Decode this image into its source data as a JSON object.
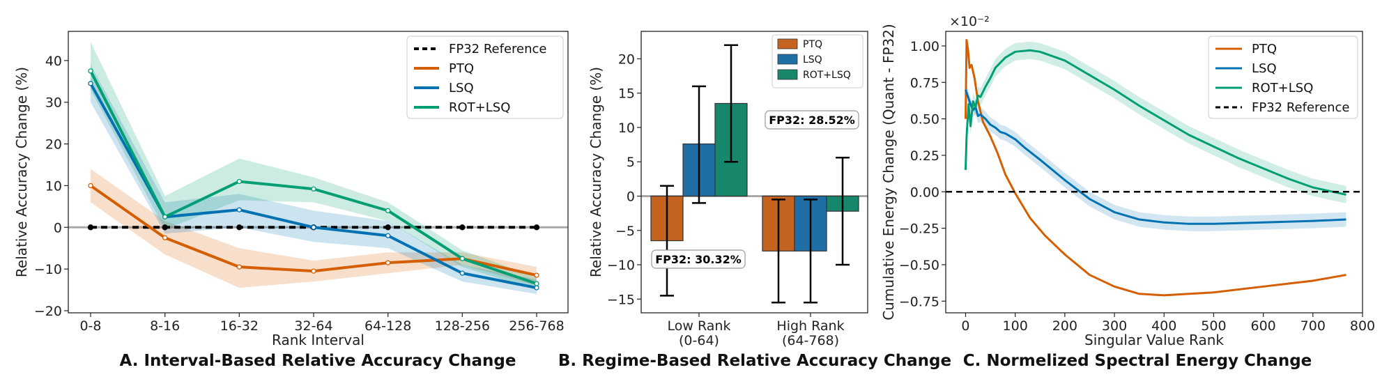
{
  "chart_data": [
    {
      "panel": "A",
      "type": "line",
      "title": "A. Interval-Based Relative Accuracy Change",
      "xlabel": "Rank Interval",
      "ylabel": "Relative Accuracy Change (%)",
      "categories": [
        "0-8",
        "8-16",
        "16-32",
        "32-64",
        "64-128",
        "128-256",
        "256-768"
      ],
      "ylim": [
        -20.5,
        47
      ],
      "yticks": [
        -20,
        -10,
        0,
        10,
        20,
        30,
        40
      ],
      "ytick_labels": [
        "−20",
        "−10",
        "0",
        "10",
        "20",
        "30",
        "40"
      ],
      "hline": 0,
      "legend_position": "top-right",
      "series": [
        {
          "name": "FP32 Reference",
          "color": "#000000",
          "style": "dashed-dots",
          "values": [
            0,
            0,
            0,
            0,
            0,
            0,
            0
          ]
        },
        {
          "name": "PTQ",
          "color": "#d55e00",
          "style": "solid",
          "values": [
            10,
            -2.5,
            -9.5,
            -10.5,
            -8.5,
            -7.5,
            -11.5
          ],
          "lower": [
            6,
            -6.5,
            -14.5,
            -13,
            -11,
            -9,
            -14
          ],
          "upper": [
            14,
            1.5,
            -5,
            -8,
            -6,
            -6,
            -9.5
          ]
        },
        {
          "name": "LSQ",
          "color": "#0072b2",
          "style": "solid",
          "values": [
            34.5,
            2.5,
            4.2,
            0,
            -2,
            -11,
            -14.5
          ],
          "lower": [
            30,
            -1.5,
            0,
            -3.5,
            -5,
            -13,
            -16
          ],
          "upper": [
            39,
            6,
            8,
            4,
            1.5,
            -9,
            -12.5
          ]
        },
        {
          "name": "ROT+LSQ",
          "color": "#009e73",
          "style": "solid",
          "values": [
            37.5,
            2.5,
            11,
            9.2,
            4,
            -7.5,
            -13.5
          ],
          "lower": [
            33,
            -0.5,
            6.5,
            6,
            1.5,
            -9.5,
            -15
          ],
          "upper": [
            44.5,
            7.5,
            16.5,
            12,
            6,
            -5.5,
            -12
          ]
        }
      ]
    },
    {
      "panel": "B",
      "type": "bar",
      "title": "B. Regime-Based Relative Accuracy Change",
      "xlabel": "",
      "ylabel": "Relative Accuracy Change (%)",
      "categories": [
        "Low Rank\n(0-64)",
        "High Rank\n(64-768)"
      ],
      "ylim": [
        -17,
        24
      ],
      "yticks": [
        -15,
        -10,
        -5,
        0,
        5,
        10,
        15,
        20
      ],
      "ytick_labels": [
        "−15",
        "−10",
        "−5",
        "0",
        "5",
        "10",
        "15",
        "20"
      ],
      "hline": 0,
      "legend_position": "top-right",
      "series": [
        {
          "name": "PTQ",
          "color": "#c46420",
          "values": [
            -6.5,
            -8
          ],
          "err_low": [
            -14.5,
            -15.5
          ],
          "err_high": [
            1.5,
            -0.5
          ]
        },
        {
          "name": "LSQ",
          "color": "#1f6fa6",
          "values": [
            7.6,
            -8
          ],
          "err_low": [
            -1,
            -15.5
          ],
          "err_high": [
            16,
            -0.5
          ]
        },
        {
          "name": "ROT+LSQ",
          "color": "#16876a",
          "values": [
            13.5,
            -2.2
          ],
          "err_low": [
            5,
            -10
          ],
          "err_high": [
            22,
            5.6
          ]
        }
      ],
      "annotations": [
        "FP32: 30.32%",
        "FP32: 28.52%"
      ]
    },
    {
      "panel": "C",
      "type": "line",
      "title": "C. Normelized Spectral Energy Change",
      "xlabel": "Singular Value Rank",
      "ylabel": "Cumulative Energy Change (Quant - FP32)",
      "scale_label": "×10⁻²",
      "xlim": [
        -40,
        800
      ],
      "ylim": [
        -0.83,
        1.1
      ],
      "xticks": [
        0,
        100,
        200,
        300,
        400,
        500,
        600,
        700,
        800
      ],
      "yticks": [
        -0.75,
        -0.5,
        -0.25,
        0.0,
        0.25,
        0.5,
        0.75,
        1.0
      ],
      "ytick_labels": [
        "−0.75",
        "−0.50",
        "−0.25",
        "0.00",
        "0.25",
        "0.50",
        "0.75",
        "1.00"
      ],
      "hline": 0,
      "legend_position": "top-right",
      "series": [
        {
          "name": "PTQ",
          "color": "#d55e00",
          "band": 0,
          "x": [
            0,
            2,
            5,
            8,
            12,
            18,
            25,
            35,
            50,
            65,
            80,
            100,
            130,
            160,
            200,
            250,
            300,
            350,
            400,
            450,
            500,
            550,
            600,
            650,
            700,
            767
          ],
          "y": [
            0.5,
            1.04,
            0.97,
            0.85,
            0.87,
            0.78,
            0.62,
            0.48,
            0.38,
            0.26,
            0.12,
            -0.01,
            -0.18,
            -0.3,
            -0.43,
            -0.57,
            -0.65,
            -0.7,
            -0.71,
            -0.7,
            -0.69,
            -0.67,
            -0.65,
            -0.63,
            -0.61,
            -0.57
          ]
        },
        {
          "name": "LSQ",
          "color": "#0072b2",
          "band": 0.05,
          "x": [
            0,
            5,
            10,
            15,
            20,
            25,
            30,
            40,
            50,
            60,
            70,
            80,
            90,
            100,
            120,
            150,
            200,
            250,
            300,
            350,
            400,
            450,
            500,
            600,
            700,
            767
          ],
          "y": [
            0.7,
            0.65,
            0.6,
            0.56,
            0.58,
            0.52,
            0.53,
            0.5,
            0.46,
            0.44,
            0.41,
            0.4,
            0.38,
            0.36,
            0.3,
            0.22,
            0.08,
            -0.05,
            -0.14,
            -0.19,
            -0.21,
            -0.22,
            -0.22,
            -0.21,
            -0.2,
            -0.19
          ]
        },
        {
          "name": "ROT+LSQ",
          "color": "#009e73",
          "band": 0.06,
          "x": [
            0,
            2,
            6,
            10,
            15,
            20,
            25,
            30,
            40,
            50,
            60,
            80,
            100,
            130,
            150,
            200,
            250,
            300,
            350,
            400,
            450,
            500,
            550,
            600,
            650,
            700,
            767
          ],
          "y": [
            0.15,
            0.38,
            0.6,
            0.45,
            0.62,
            0.58,
            0.66,
            0.65,
            0.72,
            0.78,
            0.85,
            0.92,
            0.96,
            0.97,
            0.96,
            0.9,
            0.8,
            0.7,
            0.59,
            0.49,
            0.39,
            0.31,
            0.23,
            0.16,
            0.09,
            0.03,
            -0.02
          ]
        },
        {
          "name": "FP32 Reference",
          "color": "#000000",
          "style": "dashed",
          "x": [
            -40,
            800
          ],
          "y": [
            0,
            0
          ]
        }
      ]
    }
  ]
}
